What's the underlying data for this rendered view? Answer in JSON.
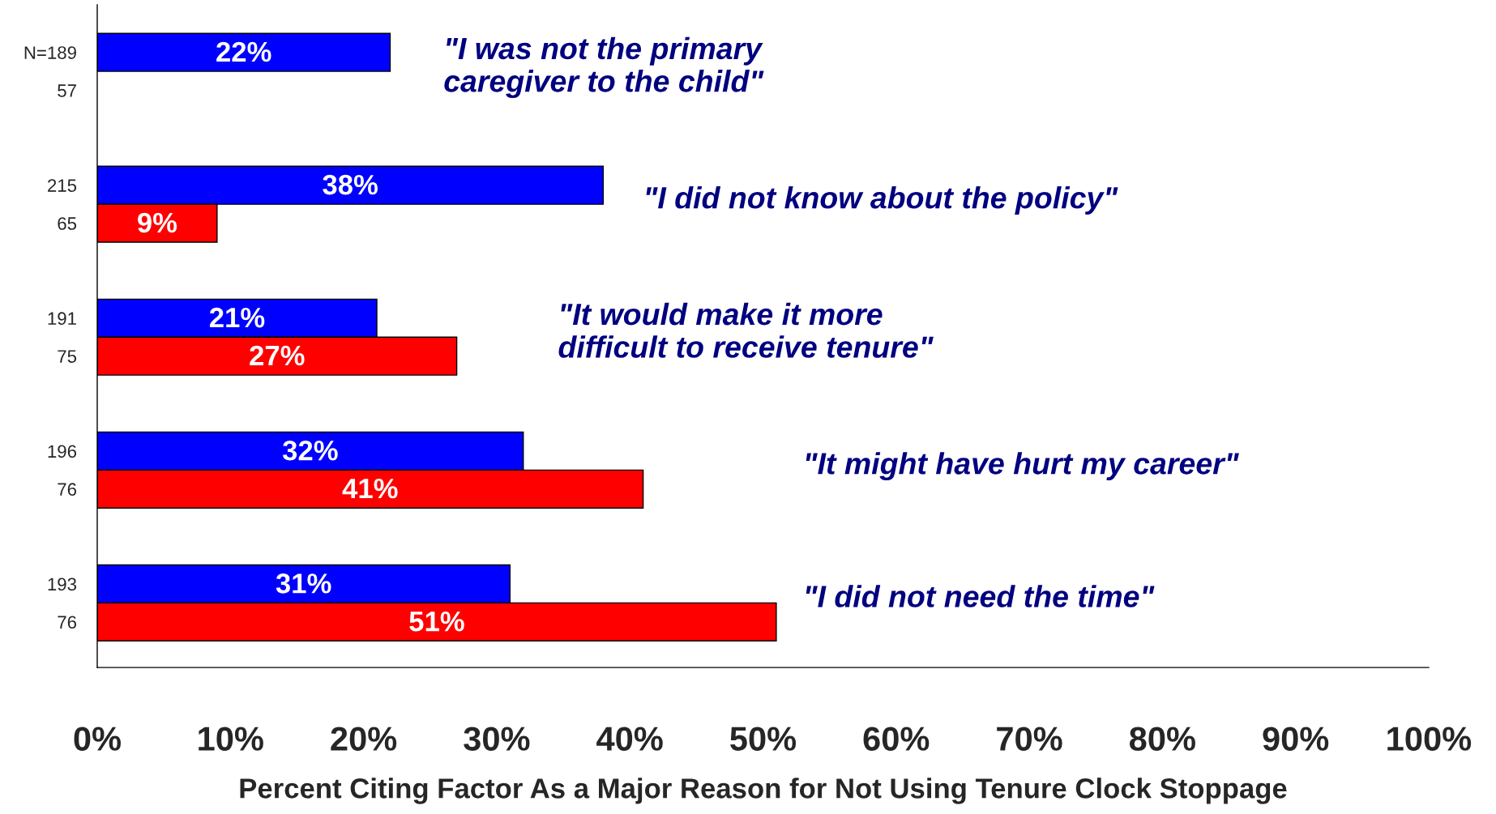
{
  "chart_data": {
    "type": "bar",
    "orientation": "horizontal",
    "xlabel": "Percent Citing Factor As a Major Reason for Not Using Tenure Clock Stoppage",
    "categories": [
      "N=189",
      "57",
      "215",
      "65",
      "191",
      "75",
      "196",
      "76",
      "193",
      "76"
    ],
    "series": [
      {
        "color": "#0000ff",
        "values": [
          22,
          null,
          38,
          null,
          21,
          null,
          32,
          null,
          31,
          null
        ],
        "value_labels": [
          "22%",
          null,
          "38%",
          null,
          "21%",
          null,
          "32%",
          null,
          "31%",
          null
        ]
      },
      {
        "color": "#ff0000",
        "values": [
          null,
          null,
          null,
          9,
          null,
          27,
          null,
          41,
          null,
          51
        ],
        "value_labels": [
          null,
          null,
          null,
          "9%",
          null,
          "27%",
          null,
          "41%",
          null,
          "51%"
        ]
      }
    ],
    "annotations": [
      "\"I was not the primary\ncaregiver to the child\"",
      "\"I did not know about the policy\"",
      "\"It would make it more\ndifficult to receive tenure\"",
      "\"It might have hurt my career\"",
      "\"I did not need the time\""
    ],
    "xlim": [
      0,
      100
    ],
    "xticks": [
      {
        "value": 0,
        "label": "0%"
      },
      {
        "value": 10,
        "label": "10%"
      },
      {
        "value": 20,
        "label": "20%"
      },
      {
        "value": 30,
        "label": "30%"
      },
      {
        "value": 40,
        "label": "40%"
      },
      {
        "value": 50,
        "label": "50%"
      },
      {
        "value": 60,
        "label": "60%"
      },
      {
        "value": 70,
        "label": "70%"
      },
      {
        "value": 80,
        "label": "80%"
      },
      {
        "value": 90,
        "label": "90%"
      },
      {
        "value": 100,
        "label": "100%"
      }
    ],
    "grid": false,
    "legend": false
  }
}
